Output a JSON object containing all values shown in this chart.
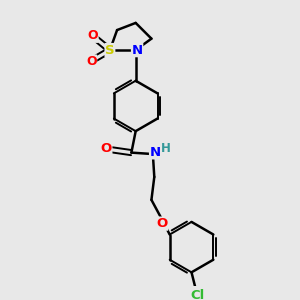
{
  "bg_color": "#e8e8e8",
  "bond_color": "#000000",
  "S_color": "#cccc00",
  "N_color": "#0000ff",
  "O_color": "#ff0000",
  "Cl_color": "#33bb33",
  "H_color": "#339999",
  "figsize": [
    3.0,
    3.0
  ],
  "dpi": 100,
  "xlim": [
    0,
    10
  ],
  "ylim": [
    0,
    10
  ]
}
